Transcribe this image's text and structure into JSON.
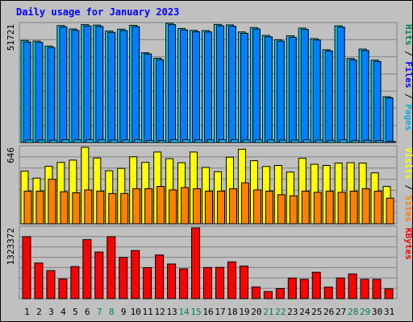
{
  "chart_data": {
    "type": "bar",
    "title": "Daily usage for January 2023",
    "days": [
      "1",
      "2",
      "3",
      "4",
      "5",
      "6",
      "7",
      "8",
      "9",
      "10",
      "11",
      "12",
      "13",
      "14",
      "15",
      "16",
      "17",
      "18",
      "19",
      "20",
      "21",
      "22",
      "23",
      "24",
      "25",
      "26",
      "27",
      "28",
      "29",
      "30",
      "31"
    ],
    "weekend_days": [
      "7",
      "8",
      "14",
      "15",
      "21",
      "22",
      "28",
      "29"
    ],
    "colors": {
      "title": "#0000ff",
      "weekday_label": "#000000",
      "weekend_label": "#00805c",
      "background": "#c0c0c0",
      "grid": "#808080",
      "hits": "#00ddff",
      "files": "#0080ff",
      "pages": "#00c0ff",
      "visits": "#ffff00",
      "sites": "#ff8000",
      "kbytes": "#ff0000"
    },
    "panels": [
      {
        "id": "hits_files",
        "max_label": "51721",
        "ylim": [
          0,
          51721
        ],
        "right_labels": [
          {
            "text": "Hits",
            "color": "#00805c"
          },
          {
            "text": " / ",
            "color": "#000000"
          },
          {
            "text": "Files",
            "color": "#0000ff"
          },
          {
            "text": " / ",
            "color": "#000000"
          },
          {
            "text": "Pages",
            "color": "#00b0e0"
          }
        ],
        "series": [
          {
            "name": "Hits",
            "color": "#00ddff",
            "values": [
              44600,
              44300,
              42100,
              51100,
              49600,
              51500,
              51300,
              48700,
              49500,
              51200,
              39200,
              36800,
              52100,
              49800,
              49000,
              48900,
              51600,
              51400,
              48300,
              50200,
              46800,
              44900,
              46600,
              50000,
              45400,
              40500,
              51000,
              36700,
              40800,
              36000,
              20000
            ]
          },
          {
            "name": "Files",
            "color": "#0080ff",
            "values": [
              43900,
              43700,
              41500,
              50500,
              49000,
              50900,
              50700,
              48100,
              48900,
              50600,
              38700,
              36200,
              51500,
              49200,
              48400,
              48300,
              51000,
              50800,
              47700,
              49600,
              46200,
              44300,
              46000,
              49400,
              44800,
              40000,
              50400,
              36100,
              40200,
              35400,
              19500
            ]
          },
          {
            "name": "Pages",
            "color": "#00c0ff",
            "values": [
              1100,
              1050,
              1000,
              1200,
              1150,
              1200,
              1180,
              1100,
              1120,
              1190,
              900,
              850,
              1210,
              1160,
              1140,
              1130,
              1200,
              1195,
              1120,
              1170,
              1090,
              1040,
              1080,
              1160,
              1050,
              940,
              1190,
              850,
              950,
              840,
              470
            ]
          }
        ]
      },
      {
        "id": "visits_sites",
        "max_label": "646",
        "ylim": [
          0,
          646
        ],
        "right_labels": [
          {
            "text": "Visits",
            "color": "#ffff00"
          },
          {
            "text": " / ",
            "color": "#000000"
          },
          {
            "text": "Sites",
            "color": "#ff8000"
          }
        ],
        "series": [
          {
            "name": "Visits",
            "color": "#ffff00",
            "values": [
              445,
              386,
              486,
              519,
              538,
              646,
              556,
              448,
              468,
              566,
              519,
              606,
              550,
              516,
              606,
              476,
              440,
              563,
              630,
              533,
              484,
              493,
              437,
              553,
              503,
              493,
              513,
              516,
              513,
              430,
              316
            ]
          },
          {
            "name": "Sites",
            "color": "#ff8000",
            "values": [
              276,
              276,
              376,
              271,
              262,
              286,
              276,
              256,
              256,
              296,
              296,
              316,
              286,
              306,
              296,
              276,
              276,
              296,
              346,
              286,
              276,
              246,
              236,
              276,
              266,
              276,
              266,
              276,
              296,
              276,
              216
            ]
          }
        ]
      },
      {
        "id": "kbytes",
        "max_label": "1323372",
        "ylim": [
          0,
          1323372
        ],
        "right_labels": [
          {
            "text": "KBytes",
            "color": "#ff0000"
          }
        ],
        "series": [
          {
            "name": "KBytes",
            "color": "#ff0000",
            "values": [
              1158000,
              666000,
              524000,
              368000,
              599000,
              1103000,
              871000,
              1158000,
              771000,
              899000,
              580000,
              816000,
              647000,
              557000,
              1323000,
              582000,
              584000,
              687000,
              610000,
              219000,
              133000,
              188000,
              385000,
              362000,
              493000,
              216000,
              386000,
              462000,
              362000,
              362000,
              184000
            ]
          }
        ]
      }
    ]
  }
}
